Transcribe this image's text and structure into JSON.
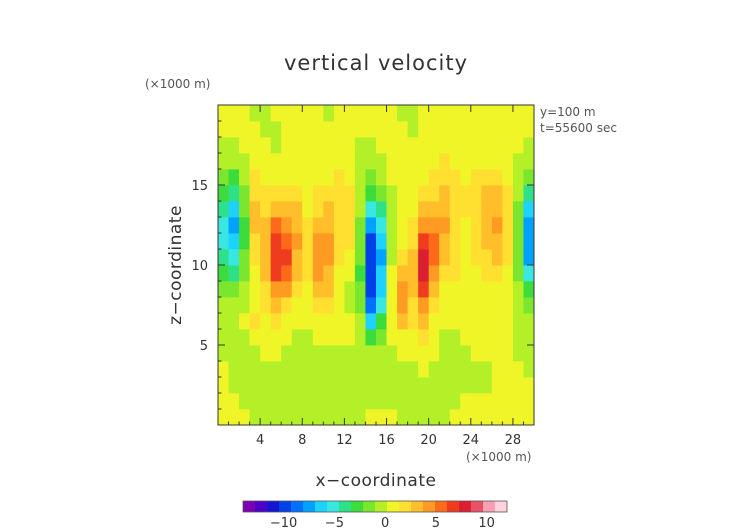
{
  "chart_data": {
    "type": "heatmap",
    "title": "vertical velocity",
    "xlabel": "x−coordinate",
    "ylabel": "z−coordinate",
    "x_unit": "(×1000 m)",
    "y_unit": "(×1000 m)",
    "annotations": [
      "y=100  m",
      "t=55600 sec"
    ],
    "xlim": [
      0,
      30
    ],
    "ylim": [
      0,
      20
    ],
    "x_ticks": [
      4,
      8,
      12,
      16,
      20,
      24,
      28
    ],
    "x_tick_labels": [
      "4",
      "8",
      "12",
      "16",
      "20",
      "24",
      "28"
    ],
    "y_ticks": [
      5,
      10,
      15
    ],
    "y_tick_labels": [
      "5",
      "10",
      "15"
    ],
    "colorbar": {
      "range": [
        -14,
        12
      ],
      "ticks": [
        -10,
        -5,
        0,
        5,
        10
      ],
      "tick_labels": [
        "−10",
        "−5",
        "0",
        "5",
        "10"
      ],
      "colors": [
        "#7b00b4",
        "#4c00c8",
        "#1414d2",
        "#0040e8",
        "#0070ff",
        "#00a2ff",
        "#1ed2ff",
        "#38e8e0",
        "#2fe08a",
        "#3cdc3c",
        "#7ae62e",
        "#b4f028",
        "#f0f528",
        "#ffe030",
        "#ffbe2a",
        "#ff9a22",
        "#ff6a1a",
        "#f03c1e",
        "#dc1e32",
        "#e85064",
        "#f5a0b4",
        "#fcd2dc"
      ]
    },
    "features": [
      {
        "x": 1.3,
        "z": 12.0,
        "w": -8
      },
      {
        "x": 5.8,
        "z": 10.5,
        "w": 8
      },
      {
        "x": 10.0,
        "z": 11.0,
        "w": 5
      },
      {
        "x": 14.8,
        "z": 10.5,
        "w": -12
      },
      {
        "x": 19.5,
        "z": 10.0,
        "w": 9
      },
      {
        "x": 25.0,
        "z": 12.0,
        "w": 3
      },
      {
        "x": 29.2,
        "z": 11.5,
        "w": -10
      }
    ]
  },
  "labels": {
    "title": "vertical velocity",
    "x_unit": "(×1000 m)",
    "y_unit": "(×1000 m)",
    "xlabel": "x−coordinate",
    "ylabel": "z−coordinate",
    "note_y": "y=100  m",
    "note_t": "t=55600 sec"
  }
}
